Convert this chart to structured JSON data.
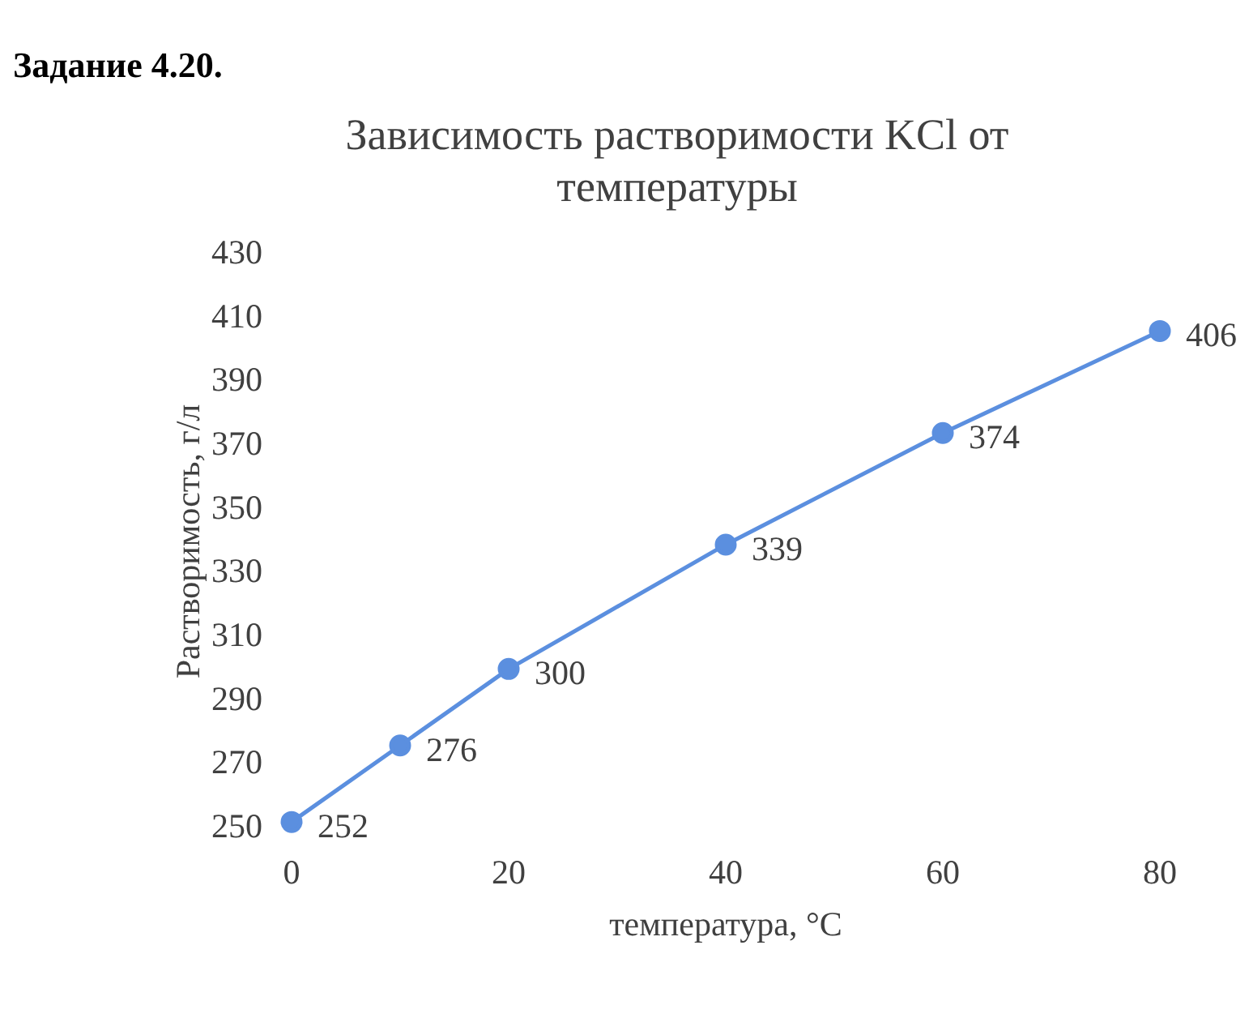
{
  "chart_data": {
    "type": "line",
    "title": "Зависимость растворимости KCl от температуры",
    "xlabel": "температура, °C",
    "ylabel": "Растворимость, г/л",
    "annotations": [
      "Задание 4.20."
    ],
    "x": [
      0,
      10,
      20,
      40,
      60,
      80
    ],
    "values": [
      252,
      276,
      300,
      339,
      374,
      406
    ],
    "color": "#5b8fdf",
    "xlim": [
      0,
      80
    ],
    "xticks": [
      0,
      20,
      40,
      60,
      80
    ],
    "ylim": [
      250,
      430
    ],
    "yticks": [
      250,
      270,
      290,
      310,
      330,
      350,
      370,
      390,
      410,
      430
    ],
    "marker": "circle",
    "data_labels": true
  }
}
